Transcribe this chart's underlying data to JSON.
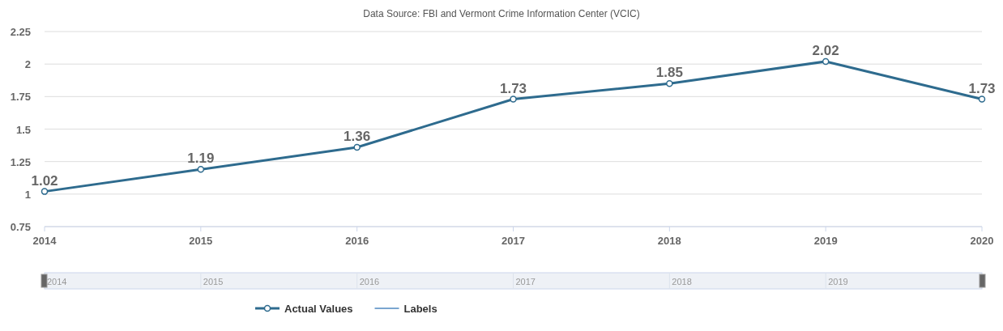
{
  "chart_data": {
    "type": "line",
    "title": "Data Source: FBI and Vermont Crime Information Center (VCIC)",
    "x": [
      2014,
      2015,
      2016,
      2017,
      2018,
      2019,
      2020
    ],
    "series": [
      {
        "name": "Actual Values",
        "color": "#2e6b8e",
        "values": [
          1.02,
          1.19,
          1.36,
          1.73,
          1.85,
          2.02,
          1.73
        ]
      },
      {
        "name": "Labels",
        "color": "#7aa6d0",
        "values": [
          null,
          null,
          null,
          null,
          null,
          null,
          null
        ]
      }
    ],
    "x2lim": [
      2014,
      2019
    ],
    "x2ticks": [
      2014,
      2015,
      2016,
      2017,
      2018,
      2019
    ],
    "xlim": [
      2014,
      2020
    ],
    "xticks": [
      2014,
      2015,
      2016,
      2017,
      2018,
      2019,
      2020
    ],
    "ylim": [
      0.75,
      2.25
    ],
    "yticks": [
      0.75,
      1,
      1.25,
      1.5,
      1.75,
      2,
      2.25
    ],
    "grid": "y",
    "legend": "bottom",
    "marker": "circle",
    "line_style": "solid",
    "data_labels": true
  }
}
